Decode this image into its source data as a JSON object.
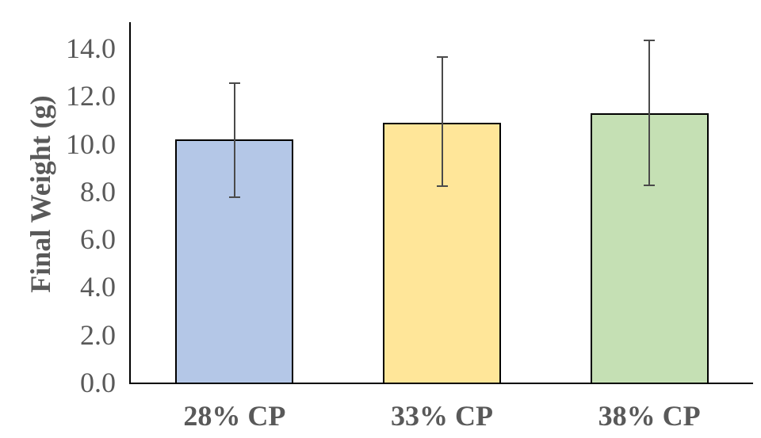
{
  "chart_data": {
    "type": "bar",
    "title": "",
    "xlabel": "",
    "ylabel": "Final Weight (g)",
    "categories": [
      "28% CP",
      "33% CP",
      "38% CP"
    ],
    "values": [
      10.2,
      10.9,
      11.3
    ],
    "error_plus": [
      2.3,
      2.7,
      3.0
    ],
    "error_minus": [
      2.4,
      2.65,
      3.0
    ],
    "yticks": [
      "0.0",
      "2.0",
      "4.0",
      "6.0",
      "8.0",
      "10.0",
      "12.0",
      "14.0"
    ],
    "ylim": [
      0,
      15.1
    ],
    "grid": false,
    "legend": null,
    "bar_colors": [
      "#B4C7E7",
      "#FFE699",
      "#C5E0B4"
    ],
    "bar_border_color": "#000000",
    "error_bar_color": "#4a4a4a",
    "axis_color": "#000000",
    "text_color": "#595959"
  }
}
